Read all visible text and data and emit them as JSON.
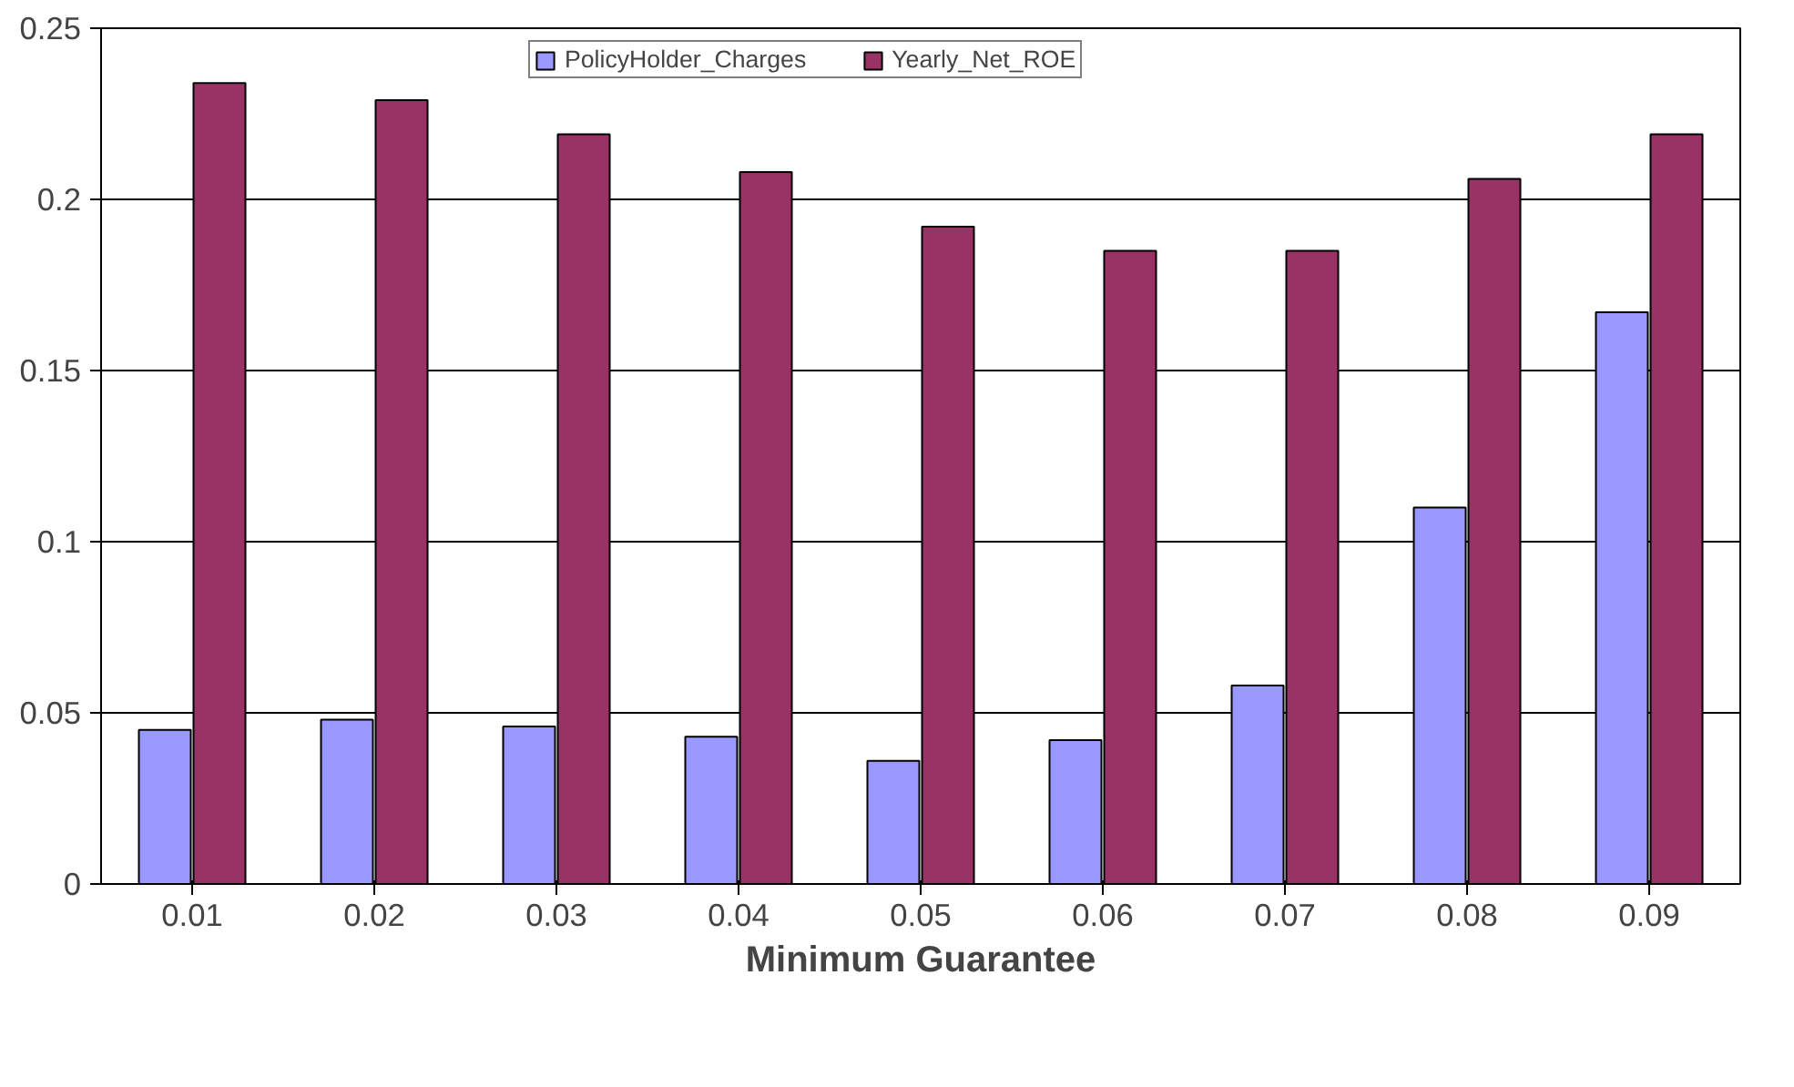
{
  "chart_data": {
    "type": "bar",
    "xlabel": "Minimum Guarantee",
    "categories": [
      "0.01",
      "0.02",
      "0.03",
      "0.04",
      "0.05",
      "0.06",
      "0.07",
      "0.08",
      "0.09"
    ],
    "series": [
      {
        "name": "PolicyHolder_Charges",
        "color": "#9999ff",
        "values": [
          0.045,
          0.048,
          0.046,
          0.043,
          0.036,
          0.042,
          0.058,
          0.11,
          0.167
        ]
      },
      {
        "name": "Yearly_Net_ROE",
        "color": "#993366",
        "values": [
          0.234,
          0.229,
          0.219,
          0.208,
          0.192,
          0.185,
          0.185,
          0.206,
          0.219
        ]
      }
    ],
    "ylim": [
      0,
      0.25
    ],
    "yticks": [
      0,
      0.05,
      0.1,
      0.15,
      0.2,
      0.25
    ],
    "grid": "y",
    "legend": "top"
  }
}
